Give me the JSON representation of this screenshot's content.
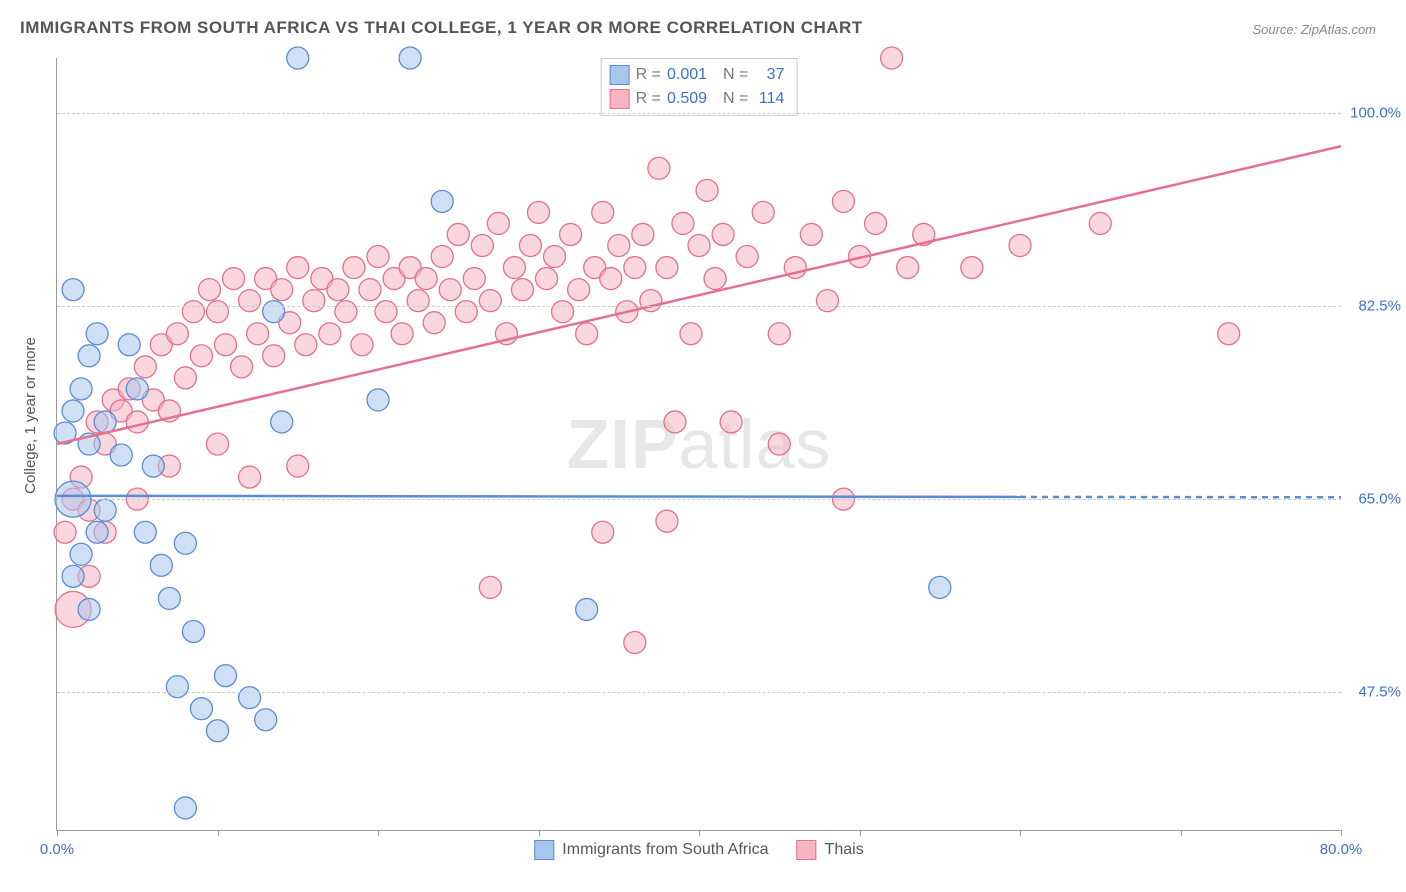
{
  "title": "IMMIGRANTS FROM SOUTH AFRICA VS THAI COLLEGE, 1 YEAR OR MORE CORRELATION CHART",
  "source": "Source: ZipAtlas.com",
  "y_axis_label": "College, 1 year or more",
  "watermark": "ZIPatlas",
  "chart": {
    "type": "scatter",
    "background_color": "#ffffff",
    "grid_color": "#cccccc",
    "axis_color": "#999999",
    "title_color": "#555555",
    "source_color": "#888888",
    "tick_color": "#3b6fd6",
    "title_fontsize": 17,
    "tick_fontsize": 15,
    "legend_fontsize": 16,
    "xlim": [
      0,
      80
    ],
    "ylim": [
      35,
      105
    ],
    "y_ticks": [
      47.5,
      65.0,
      82.5,
      100.0
    ],
    "y_tick_labels": [
      "47.5%",
      "65.0%",
      "82.5%",
      "100.0%"
    ],
    "x_ticks": [
      0,
      10,
      20,
      30,
      40,
      50,
      60,
      70,
      80
    ],
    "x_tick_labels": {
      "0": "0.0%",
      "80": "80.0%"
    },
    "marker_radius": 11,
    "marker_radius_large": 18,
    "marker_opacity": 0.55,
    "line_width": 2.5,
    "series": [
      {
        "name": "Immigrants from South Africa",
        "color_fill": "#a8c6ec",
        "color_stroke": "#5b8cd6",
        "R": "0.001",
        "N": "37",
        "trend": {
          "x1": 0,
          "y1": 65.3,
          "x2": 60,
          "y2": 65.2,
          "dashed_after_x": 60,
          "x2_dash": 80
        },
        "points": [
          [
            1,
            65,
            18
          ],
          [
            0.5,
            71
          ],
          [
            1,
            84
          ],
          [
            2,
            78
          ],
          [
            2.5,
            80
          ],
          [
            1.5,
            75
          ],
          [
            1,
            73
          ],
          [
            2,
            70
          ],
          [
            3,
            72
          ],
          [
            4,
            69
          ],
          [
            4.5,
            79
          ],
          [
            3,
            64
          ],
          [
            2.5,
            62
          ],
          [
            1.5,
            60
          ],
          [
            1,
            58
          ],
          [
            2,
            55
          ],
          [
            5,
            75
          ],
          [
            6,
            68
          ],
          [
            5.5,
            62
          ],
          [
            6.5,
            59
          ],
          [
            7,
            56
          ],
          [
            8,
            61
          ],
          [
            8.5,
            53
          ],
          [
            7.5,
            48
          ],
          [
            9,
            46
          ],
          [
            10,
            44
          ],
          [
            10.5,
            49
          ],
          [
            12,
            47
          ],
          [
            13,
            45
          ],
          [
            8,
            37
          ],
          [
            15,
            105
          ],
          [
            22,
            105
          ],
          [
            14,
            72
          ],
          [
            13.5,
            82
          ],
          [
            20,
            74
          ],
          [
            24,
            92
          ],
          [
            33,
            55
          ],
          [
            55,
            57
          ]
        ]
      },
      {
        "name": "Thais",
        "color_fill": "#f5b5c3",
        "color_stroke": "#e5718c",
        "R": "0.509",
        "N": "114",
        "trend": {
          "x1": 0,
          "y1": 70,
          "x2": 80,
          "y2": 97
        },
        "points": [
          [
            1,
            55,
            18
          ],
          [
            0.5,
            62
          ],
          [
            1,
            65
          ],
          [
            1.5,
            67
          ],
          [
            2,
            64
          ],
          [
            2.5,
            72
          ],
          [
            3,
            70
          ],
          [
            3.5,
            74
          ],
          [
            4,
            73
          ],
          [
            4.5,
            75
          ],
          [
            5,
            72
          ],
          [
            5.5,
            77
          ],
          [
            6,
            74
          ],
          [
            6.5,
            79
          ],
          [
            7,
            73
          ],
          [
            7.5,
            80
          ],
          [
            8,
            76
          ],
          [
            8.5,
            82
          ],
          [
            9,
            78
          ],
          [
            9.5,
            84
          ],
          [
            10,
            82
          ],
          [
            10.5,
            79
          ],
          [
            11,
            85
          ],
          [
            11.5,
            77
          ],
          [
            12,
            83
          ],
          [
            12.5,
            80
          ],
          [
            13,
            85
          ],
          [
            13.5,
            78
          ],
          [
            14,
            84
          ],
          [
            14.5,
            81
          ],
          [
            15,
            86
          ],
          [
            15.5,
            79
          ],
          [
            16,
            83
          ],
          [
            16.5,
            85
          ],
          [
            17,
            80
          ],
          [
            17.5,
            84
          ],
          [
            18,
            82
          ],
          [
            18.5,
            86
          ],
          [
            19,
            79
          ],
          [
            19.5,
            84
          ],
          [
            20,
            87
          ],
          [
            20.5,
            82
          ],
          [
            21,
            85
          ],
          [
            21.5,
            80
          ],
          [
            22,
            86
          ],
          [
            22.5,
            83
          ],
          [
            23,
            85
          ],
          [
            23.5,
            81
          ],
          [
            24,
            87
          ],
          [
            24.5,
            84
          ],
          [
            25,
            89
          ],
          [
            25.5,
            82
          ],
          [
            26,
            85
          ],
          [
            26.5,
            88
          ],
          [
            27,
            83
          ],
          [
            27.5,
            90
          ],
          [
            28,
            80
          ],
          [
            28.5,
            86
          ],
          [
            29,
            84
          ],
          [
            29.5,
            88
          ],
          [
            30,
            91
          ],
          [
            30.5,
            85
          ],
          [
            31,
            87
          ],
          [
            31.5,
            82
          ],
          [
            32,
            89
          ],
          [
            32.5,
            84
          ],
          [
            33,
            80
          ],
          [
            33.5,
            86
          ],
          [
            34,
            91
          ],
          [
            34.5,
            85
          ],
          [
            35,
            88
          ],
          [
            35.5,
            82
          ],
          [
            36,
            86
          ],
          [
            36.5,
            89
          ],
          [
            37,
            83
          ],
          [
            37.5,
            95
          ],
          [
            38,
            86
          ],
          [
            38.5,
            72
          ],
          [
            39,
            90
          ],
          [
            39.5,
            80
          ],
          [
            40,
            88
          ],
          [
            40.5,
            93
          ],
          [
            41,
            85
          ],
          [
            41.5,
            89
          ],
          [
            42,
            72
          ],
          [
            43,
            87
          ],
          [
            44,
            91
          ],
          [
            45,
            80
          ],
          [
            46,
            86
          ],
          [
            47,
            89
          ],
          [
            48,
            83
          ],
          [
            49,
            92
          ],
          [
            50,
            87
          ],
          [
            51,
            90
          ],
          [
            52,
            105
          ],
          [
            53,
            86
          ],
          [
            45,
            70
          ],
          [
            34,
            62
          ],
          [
            27,
            57
          ],
          [
            15,
            68
          ],
          [
            12,
            67
          ],
          [
            10,
            70
          ],
          [
            7,
            68
          ],
          [
            5,
            65
          ],
          [
            3,
            62
          ],
          [
            2,
            58
          ],
          [
            49,
            65
          ],
          [
            54,
            89
          ],
          [
            57,
            86
          ],
          [
            60,
            88
          ],
          [
            65,
            90
          ],
          [
            73,
            80
          ],
          [
            36,
            52
          ],
          [
            38,
            63
          ]
        ]
      }
    ]
  },
  "legend_top": {
    "border_color": "#cccccc",
    "label_R": "R =",
    "label_N": "N ="
  },
  "legend_bottom": {
    "items": [
      "Immigrants from South Africa",
      "Thais"
    ]
  }
}
